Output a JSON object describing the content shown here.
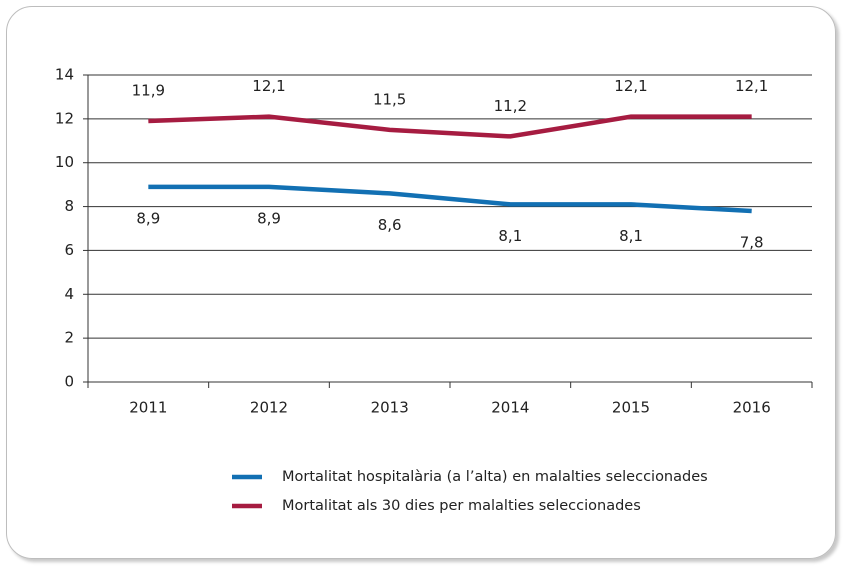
{
  "chart_data": {
    "type": "line",
    "categories": [
      "2011",
      "2012",
      "2013",
      "2014",
      "2015",
      "2016"
    ],
    "series": [
      {
        "name": "Mortalitat hospitalària (a l’alta) en malalties seleccionades",
        "color": "#1270b3",
        "values": [
          8.9,
          8.9,
          8.6,
          8.1,
          8.1,
          7.8
        ],
        "value_labels": [
          "8,9",
          "8,9",
          "8,6",
          "8,1",
          "8,1",
          "7,8"
        ]
      },
      {
        "name": "Mortalitat als 30 dies per malalties seleccionades",
        "color": "#a61c41",
        "values": [
          11.9,
          12.1,
          11.5,
          11.2,
          12.1,
          12.1
        ],
        "value_labels": [
          "11,9",
          "12,1",
          "11,5",
          "11,2",
          "12,1",
          "12,1"
        ]
      }
    ],
    "ylim": [
      0,
      14
    ],
    "yticks": [
      0,
      2,
      4,
      6,
      8,
      10,
      12,
      14
    ],
    "grid": true
  }
}
